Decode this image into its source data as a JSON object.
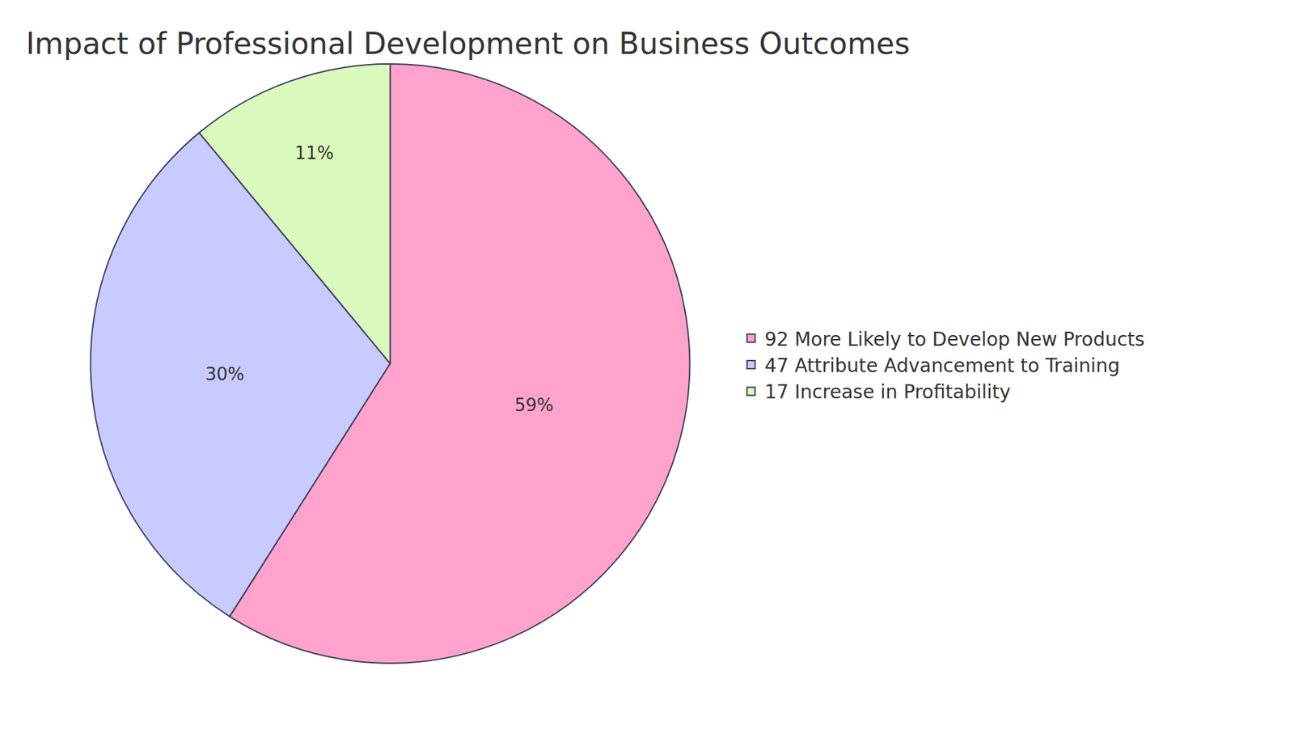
{
  "chart_data": {
    "type": "pie",
    "title": "Impact of Professional Development on Business Outcomes",
    "categories": [
      "92 More Likely to Develop New Products",
      "47 Attribute Advancement to Training",
      "17 Increase in Profitability"
    ],
    "values": [
      59,
      30,
      11
    ],
    "value_labels": [
      "59%",
      "30%",
      "11%"
    ],
    "colors": [
      "#ffa3cc",
      "#c8cbff",
      "#daf9bc"
    ],
    "data_labels": true,
    "legend": "right"
  }
}
